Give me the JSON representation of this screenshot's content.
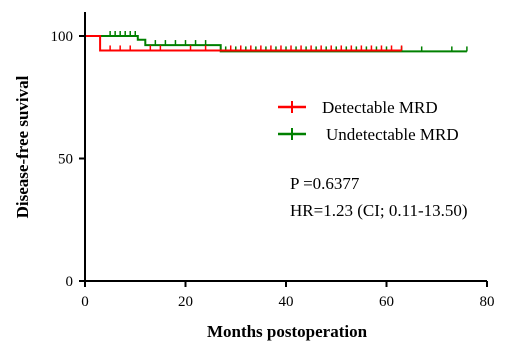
{
  "chart_data": {
    "type": "line",
    "subtype": "kaplan-meier step",
    "xlabel": "Months postoperation",
    "ylabel": "Disease-free suvival",
    "xlim": [
      0,
      80
    ],
    "ylim": [
      0,
      100
    ],
    "xticks": [
      "0",
      "20",
      "40",
      "60",
      "80"
    ],
    "yticks": [
      "0",
      "50",
      "100"
    ],
    "grid": false,
    "legend_position": "right-middle",
    "series": [
      {
        "name": "Detectable MRD",
        "color": "#ff0000",
        "steps": [
          [
            0,
            100
          ],
          [
            3,
            100
          ],
          [
            3,
            94.1
          ],
          [
            63,
            94.1
          ]
        ],
        "censor_marks": [
          5,
          7,
          9,
          13,
          15,
          21,
          24,
          29,
          31,
          33,
          35,
          37,
          39,
          41,
          43,
          45,
          47,
          49,
          51,
          53,
          55,
          57,
          59,
          61,
          63
        ]
      },
      {
        "name": "Undetectable MRD",
        "color": "#008000",
        "steps": [
          [
            0,
            100
          ],
          [
            10.5,
            100
          ],
          [
            10.5,
            98.5
          ],
          [
            12,
            98.5
          ],
          [
            12,
            96.3
          ],
          [
            27,
            96.3
          ],
          [
            27,
            93.7
          ],
          [
            76,
            93.7
          ]
        ],
        "censor_marks": [
          5,
          6,
          7,
          8,
          9,
          10,
          14,
          16,
          18,
          20,
          22,
          24,
          28,
          30,
          32,
          34,
          36,
          38,
          40,
          42,
          44,
          46,
          48,
          50,
          52,
          54,
          56,
          58,
          60,
          63,
          67,
          73,
          76
        ]
      }
    ],
    "annotations": [
      "P =0.6377",
      "HR=1.23 (CI; 0.11-13.50)"
    ]
  }
}
